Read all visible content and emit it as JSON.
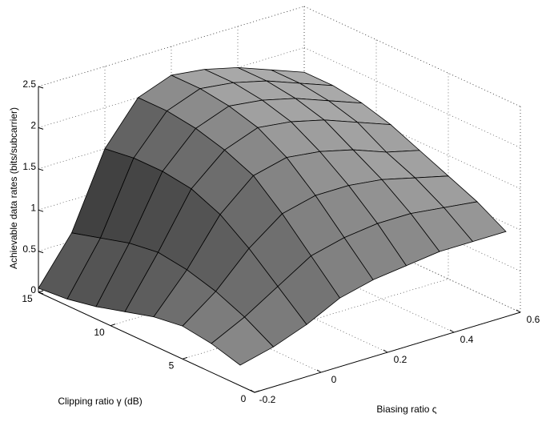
{
  "chart_data": {
    "type": "surface",
    "xlabel": "Biasing ratio ς",
    "ylabel": "Clipping ratio γ (dB)",
    "zlabel": "Achievable data rates (bits/subcarrier)",
    "x": [
      -0.2,
      -0.1,
      0,
      0.1,
      0.2,
      0.3,
      0.4,
      0.5,
      0.6
    ],
    "y": [
      1,
      3,
      5,
      7,
      9,
      11,
      13,
      15
    ],
    "values": [
      [
        0.25,
        0.35,
        0.5,
        0.7,
        0.8,
        0.85,
        0.9,
        0.9,
        0.9
      ],
      [
        0.35,
        0.55,
        0.8,
        1.05,
        1.15,
        1.2,
        1.2,
        1.15,
        1.1
      ],
      [
        0.4,
        0.7,
        1.1,
        1.4,
        1.5,
        1.5,
        1.45,
        1.35,
        1.25
      ],
      [
        0.35,
        0.8,
        1.35,
        1.7,
        1.8,
        1.75,
        1.65,
        1.5,
        1.4
      ],
      [
        0.25,
        0.85,
        1.5,
        1.85,
        2.0,
        1.95,
        1.85,
        1.7,
        1.55
      ],
      [
        0.15,
        0.8,
        1.55,
        1.95,
        2.1,
        2.05,
        1.95,
        1.8,
        1.65
      ],
      [
        0.08,
        0.7,
        1.55,
        2.0,
        2.15,
        2.1,
        2.0,
        1.85,
        1.7
      ],
      [
        0.05,
        0.6,
        1.5,
        2.0,
        2.15,
        2.1,
        2.0,
        1.85,
        1.7
      ]
    ],
    "xlim": [
      -0.2,
      0.6
    ],
    "ylim": [
      0,
      15
    ],
    "zlim": [
      0,
      2.5
    ],
    "xticks": [
      -0.2,
      0,
      0.2,
      0.4,
      0.6
    ],
    "yticks": [
      0,
      5,
      10,
      15
    ],
    "zticks": [
      0,
      0.5,
      1,
      1.5,
      2,
      2.5
    ],
    "grid": true
  }
}
